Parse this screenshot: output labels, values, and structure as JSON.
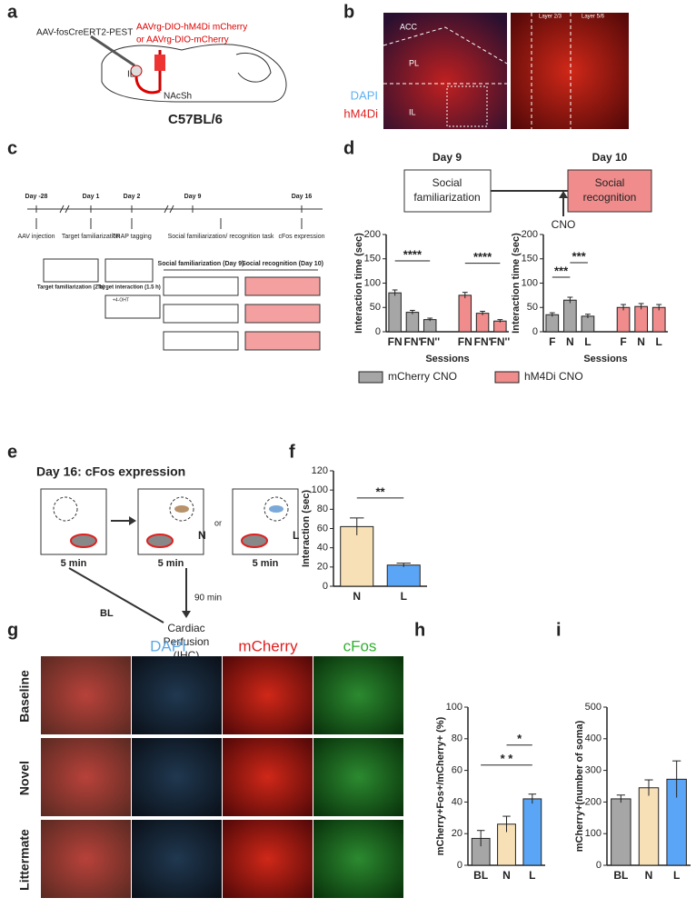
{
  "panel_labels": [
    "a",
    "b",
    "c",
    "d",
    "e",
    "f",
    "g",
    "h",
    "i"
  ],
  "a": {
    "left_vector": "AAV-fosCreERT2-PEST",
    "right_vector": "AAVrg-DIO-hM4Di mCherry",
    "right_vector_alt": "or AAVrg-DIO-mCherry",
    "region_il": "IL",
    "region_nac": "NAcSh",
    "strain": "C57BL/6"
  },
  "b": {
    "regions": [
      "ACC",
      "PL",
      "IL"
    ],
    "stains": [
      "DAPI",
      "hM4Di"
    ],
    "layers": [
      "Layer 2/3",
      "Layer 5/6"
    ]
  },
  "c": {
    "days": [
      "Day -28",
      "Day 1",
      "Day 2",
      "Day 9",
      "Day 16"
    ],
    "events": [
      "AAV injection",
      "Target familiarization",
      "TRAP tagging",
      "Social familiarization/ recognition task",
      "cFos expression"
    ],
    "boxes": [
      "Target familiarization (2 h)",
      "Target interaction (1.5 h)",
      "Social familiarization (Day 9)",
      "Social recognition (Day 10)"
    ],
    "drug": "+4-OHT"
  },
  "d": {
    "day_a": "Day 9",
    "day_b": "Day 10",
    "stage_a": [
      "Social",
      "familiarization"
    ],
    "stage_b": [
      "Social",
      "recognition"
    ],
    "drug": "CNO"
  },
  "e": {
    "title": "Day 16: cFos expression",
    "durations": [
      "5 min",
      "5 min",
      "5 min"
    ],
    "targets": [
      "N",
      "L"
    ],
    "or": "or",
    "delay": "90 min",
    "baseline": "BL",
    "outcome": [
      "Cardiac",
      "Perfusion",
      "(IHC)"
    ]
  },
  "g": {
    "channels": [
      "DAPI",
      "mCherry",
      "cFos"
    ],
    "rows": [
      "Baseline",
      "Novel",
      "Littermate"
    ]
  },
  "chart_data": [
    {
      "type": "bar",
      "ylabel": "Interaction time (sec)",
      "xlabel": "Sessions",
      "categories": [
        "FN",
        "FN'",
        "FN''"
      ],
      "series": [
        {
          "name": "mCherry CNO",
          "color": "#a6a6a6",
          "values": [
            80,
            40,
            25
          ],
          "errors": [
            6,
            4,
            3
          ]
        },
        {
          "name": "hM4Di CNO",
          "color": "#f08c8c",
          "values": [
            75,
            38,
            22
          ],
          "errors": [
            6,
            4,
            3
          ]
        }
      ],
      "ylim": [
        0,
        200
      ],
      "yticks": [
        0,
        50,
        100,
        150,
        200
      ],
      "annotations": [
        {
          "text": "****",
          "bars": [
            0,
            2
          ]
        },
        {
          "text": "****",
          "bars": [
            3,
            5
          ]
        }
      ],
      "legend": "bottom"
    },
    {
      "type": "bar",
      "ylabel": "Interaction time (sec)",
      "xlabel": "Sessions",
      "categories": [
        "F",
        "N",
        "L"
      ],
      "series": [
        {
          "color": "#a6a6a6",
          "values": [
            35,
            65,
            32
          ],
          "errors": [
            4,
            6,
            4
          ]
        },
        {
          "color": "#f08c8c",
          "values": [
            50,
            52,
            50
          ],
          "errors": [
            6,
            6,
            6
          ]
        }
      ],
      "ylim": [
        0,
        200
      ],
      "yticks": [
        0,
        50,
        100,
        150,
        200
      ],
      "annotations": [
        {
          "text": "***",
          "bars": [
            0,
            1
          ]
        },
        {
          "text": "***",
          "bars": [
            1,
            2
          ]
        }
      ]
    },
    {
      "type": "bar",
      "ylabel": "Interaction (sec)",
      "categories": [
        "N",
        "L"
      ],
      "values": [
        62,
        22
      ],
      "errors": [
        9,
        2
      ],
      "colors": [
        "#f7e0b5",
        "#5aa5f5"
      ],
      "ylim": [
        0,
        120
      ],
      "yticks": [
        0,
        20,
        40,
        60,
        80,
        100,
        120
      ],
      "annotations": [
        {
          "text": "**",
          "bars": [
            0,
            1
          ]
        }
      ]
    },
    {
      "type": "bar",
      "ylabel": "mCherry+Fos+/mCherry+ (%)",
      "categories": [
        "BL",
        "N",
        "L"
      ],
      "values": [
        17,
        26,
        42
      ],
      "errors": [
        5,
        5,
        3
      ],
      "colors": [
        "#a6a6a6",
        "#f7e0b5",
        "#5aa5f5"
      ],
      "ylim": [
        0,
        100
      ],
      "yticks": [
        0,
        20,
        40,
        60,
        80,
        100
      ],
      "annotations": [
        {
          "text": "* *",
          "bars": [
            0,
            2
          ]
        },
        {
          "text": "*",
          "bars": [
            1,
            2
          ]
        }
      ]
    },
    {
      "type": "bar",
      "ylabel": "mCherry+(number of soma)",
      "categories": [
        "BL",
        "N",
        "L"
      ],
      "values": [
        210,
        245,
        272
      ],
      "errors": [
        12,
        25,
        58
      ],
      "colors": [
        "#a6a6a6",
        "#f7e0b5",
        "#5aa5f5"
      ],
      "ylim": [
        0,
        500
      ],
      "yticks": [
        0,
        100,
        200,
        300,
        400,
        500
      ]
    }
  ]
}
